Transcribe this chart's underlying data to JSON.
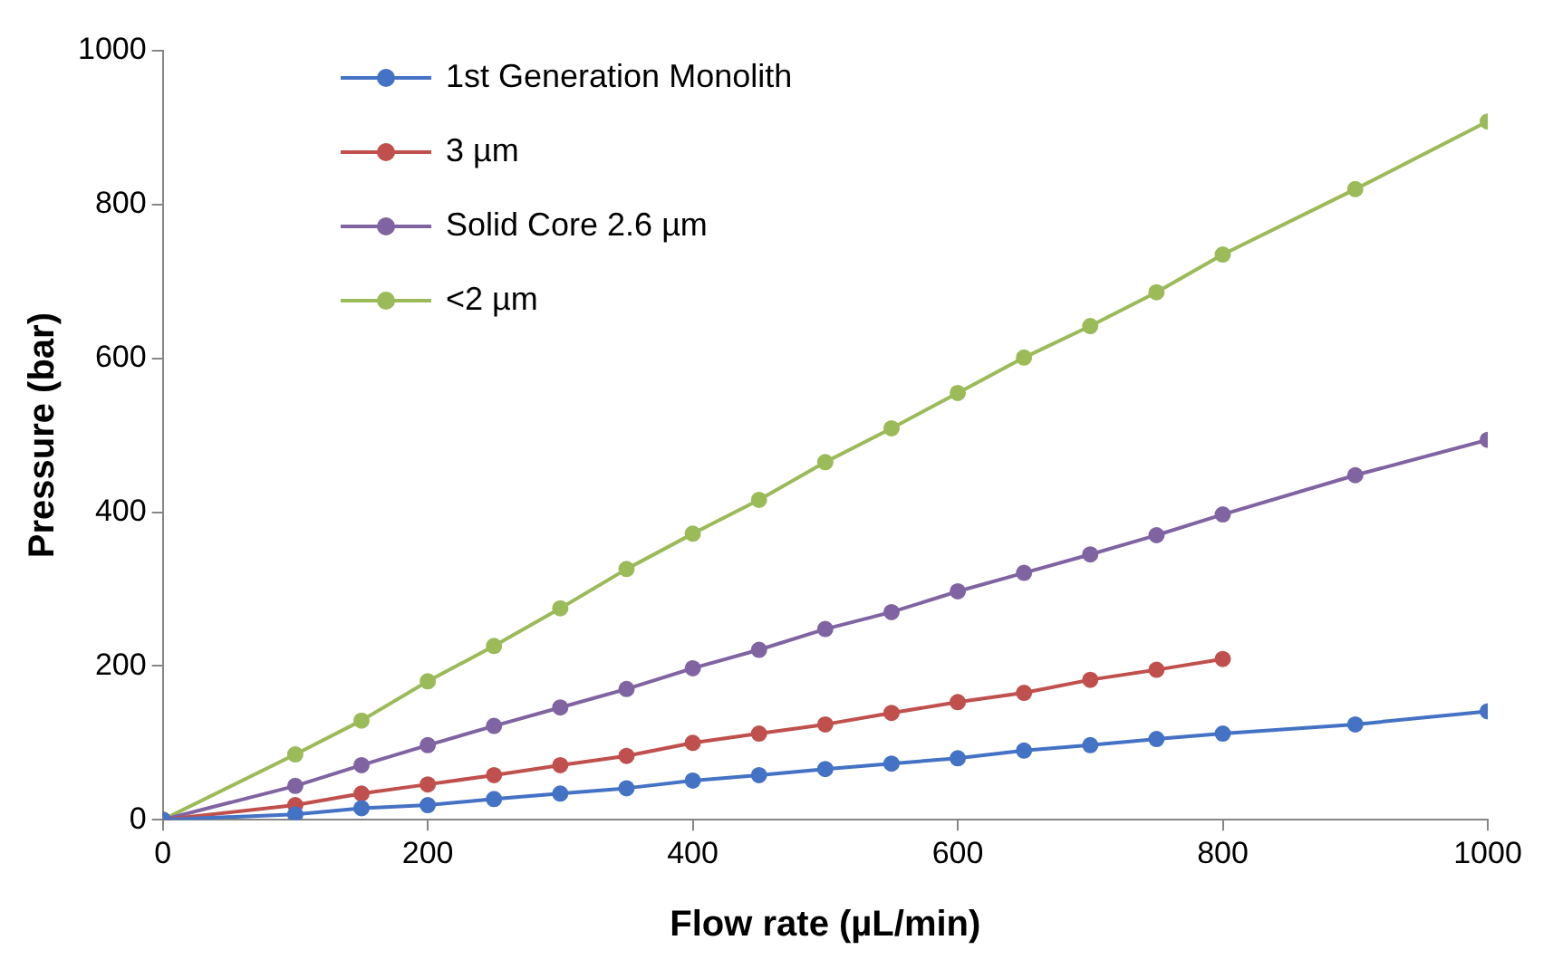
{
  "chart_data": {
    "type": "line",
    "xlabel": "Flow rate (µL/min)",
    "ylabel": "Pressure (bar)",
    "x": [
      0,
      100,
      150,
      200,
      250,
      300,
      350,
      400,
      450,
      500,
      550,
      600,
      650,
      700,
      750,
      800,
      900,
      1000
    ],
    "xlim": [
      0,
      1000
    ],
    "xticks": [
      0,
      200,
      400,
      600,
      800,
      1000
    ],
    "ylim": [
      0,
      1000
    ],
    "yticks": [
      0,
      200,
      400,
      600,
      800,
      1000
    ],
    "grid": false,
    "legend": "top left",
    "marker": "circle",
    "line_style": "solid",
    "series": [
      {
        "name": "1st Generation Monolith",
        "color": "#4472c4",
        "values": [
          0,
          7,
          15,
          19,
          27,
          34,
          41,
          51,
          58,
          66,
          73,
          80,
          90,
          97,
          105,
          112,
          124,
          141
        ]
      },
      {
        "name": "3 µm",
        "color": "#c0504d",
        "x": [
          0,
          100,
          150,
          200,
          250,
          300,
          350,
          400,
          450,
          500,
          550,
          600,
          650,
          700,
          750,
          800
        ],
        "values": [
          0,
          19,
          34,
          46,
          58,
          71,
          83,
          100,
          112,
          124,
          139,
          153,
          165,
          182,
          195,
          209
        ]
      },
      {
        "name": "Solid Core 2.6 µm",
        "color": "#8064a2",
        "values": [
          0,
          44,
          71,
          97,
          122,
          146,
          170,
          197,
          221,
          248,
          270,
          297,
          321,
          345,
          370,
          397,
          448,
          494
        ]
      },
      {
        "name": "<2 µm",
        "color": "#9bbb59",
        "values": [
          0,
          85,
          129,
          180,
          226,
          275,
          326,
          372,
          416,
          465,
          509,
          555,
          601,
          642,
          686,
          735,
          820,
          908
        ]
      }
    ]
  }
}
